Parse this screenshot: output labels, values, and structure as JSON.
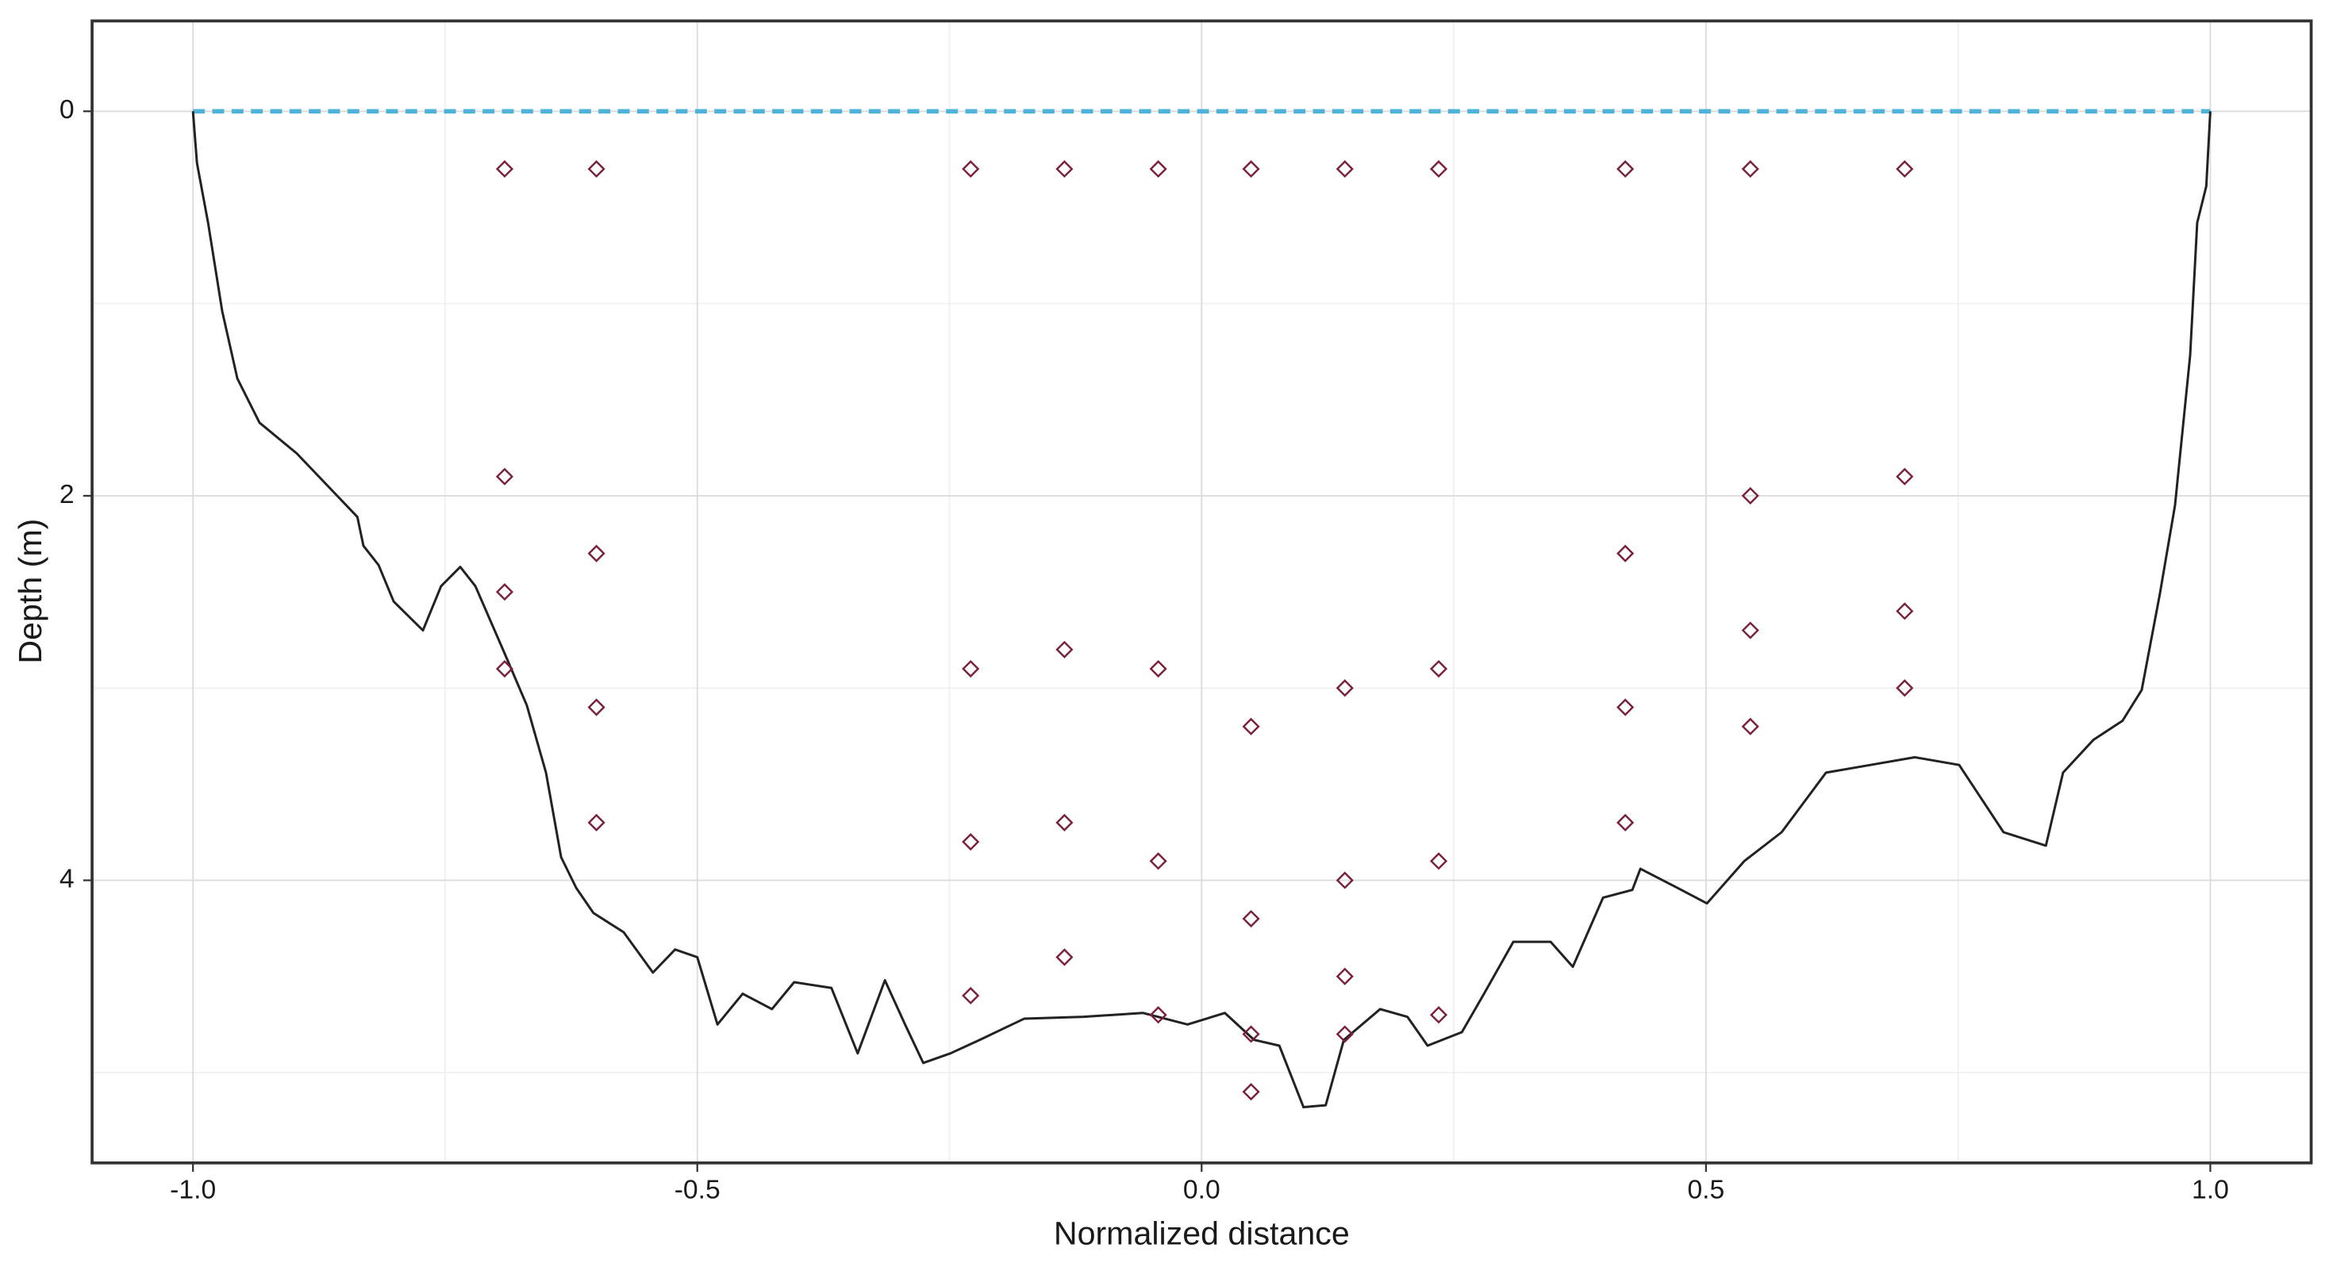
{
  "chart_data": {
    "type": "scatter",
    "xlabel": "Normalized distance",
    "ylabel": "Depth (m)",
    "xlim": [
      -1.1,
      1.1
    ],
    "ylim": [
      5.47,
      -0.47
    ],
    "xticks": [
      {
        "value": -1.0,
        "label": "-1.0"
      },
      {
        "value": -0.5,
        "label": "-0.5"
      },
      {
        "value": 0.0,
        "label": "0.0"
      },
      {
        "value": 0.5,
        "label": "0.5"
      },
      {
        "value": 1.0,
        "label": "1.0"
      }
    ],
    "yticks": [
      0,
      2,
      4
    ],
    "x_minor_ticks": [
      -0.75,
      -0.25,
      0.25,
      0.75
    ],
    "y_minor_ticks": [
      1,
      3,
      5
    ],
    "grid": true,
    "series": [
      {
        "style": "dashed",
        "color": "#4fb3d9",
        "x": [
          -1.0,
          1.0
        ],
        "values": [
          0,
          0
        ]
      },
      {
        "style": "solid",
        "color": "#222222",
        "x": [
          -1.0,
          -0.996,
          -0.985,
          -0.971,
          -0.956,
          -0.934,
          -0.897,
          -0.837,
          -0.831,
          -0.816,
          -0.801,
          -0.772,
          -0.754,
          -0.735,
          -0.72,
          -0.691,
          -0.669,
          -0.65,
          -0.635,
          -0.62,
          -0.603,
          -0.573,
          -0.544,
          -0.522,
          -0.5,
          -0.48,
          -0.455,
          -0.426,
          -0.404,
          -0.367,
          -0.341,
          -0.314,
          -0.294,
          -0.276,
          -0.249,
          -0.22,
          -0.176,
          -0.117,
          -0.058,
          -0.014,
          0.023,
          0.052,
          0.077,
          0.101,
          0.123,
          0.141,
          0.177,
          0.204,
          0.224,
          0.258,
          0.28,
          0.309,
          0.346,
          0.368,
          0.398,
          0.427,
          0.435,
          0.472,
          0.501,
          0.538,
          0.575,
          0.619,
          0.663,
          0.707,
          0.751,
          0.795,
          0.837,
          0.854,
          0.884,
          0.913,
          0.932,
          0.95,
          0.965,
          0.98,
          0.987,
          0.996,
          1.0
        ],
        "values": [
          0,
          0.27,
          0.58,
          1.04,
          1.39,
          1.62,
          1.78,
          2.11,
          2.26,
          2.36,
          2.55,
          2.7,
          2.47,
          2.37,
          2.47,
          2.82,
          3.09,
          3.44,
          3.88,
          4.04,
          4.17,
          4.27,
          4.48,
          4.36,
          4.4,
          4.75,
          4.59,
          4.67,
          4.53,
          4.56,
          4.9,
          4.52,
          4.75,
          4.95,
          4.9,
          4.83,
          4.72,
          4.71,
          4.69,
          4.75,
          4.69,
          4.83,
          4.86,
          5.18,
          5.17,
          4.83,
          4.67,
          4.71,
          4.86,
          4.79,
          4.59,
          4.32,
          4.32,
          4.45,
          4.09,
          4.05,
          3.94,
          4.04,
          4.12,
          3.9,
          3.75,
          3.44,
          3.4,
          3.36,
          3.4,
          3.75,
          3.82,
          3.44,
          3.27,
          3.17,
          3.01,
          2.51,
          2.05,
          1.27,
          0.58,
          0.39,
          0
        ]
      },
      {
        "style": "diamond",
        "color": "#7a2038",
        "x": [
          -0.691,
          -0.691,
          -0.691,
          -0.691,
          -0.6,
          -0.6,
          -0.6,
          -0.6,
          -0.229,
          -0.229,
          -0.229,
          -0.229,
          -0.136,
          -0.136,
          -0.136,
          -0.136,
          -0.043,
          -0.043,
          -0.043,
          -0.043,
          0.049,
          0.049,
          0.049,
          0.049,
          0.049,
          0.142,
          0.142,
          0.142,
          0.142,
          0.142,
          0.235,
          0.235,
          0.235,
          0.235,
          0.42,
          0.42,
          0.42,
          0.42,
          0.544,
          0.544,
          0.544,
          0.544,
          0.697,
          0.697,
          0.697,
          0.697
        ],
        "values": [
          0.3,
          1.9,
          2.5,
          2.9,
          0.3,
          2.3,
          3.1,
          3.7,
          0.3,
          2.9,
          3.8,
          4.6,
          0.3,
          2.8,
          3.7,
          4.4,
          0.3,
          2.9,
          3.9,
          4.7,
          0.3,
          3.2,
          4.2,
          4.8,
          5.1,
          0.3,
          3.0,
          4.0,
          4.5,
          4.8,
          0.3,
          2.9,
          3.9,
          4.7,
          0.3,
          2.3,
          3.1,
          3.7,
          0.3,
          2.0,
          2.7,
          3.2,
          0.3,
          1.9,
          2.6,
          3.0
        ]
      }
    ]
  }
}
